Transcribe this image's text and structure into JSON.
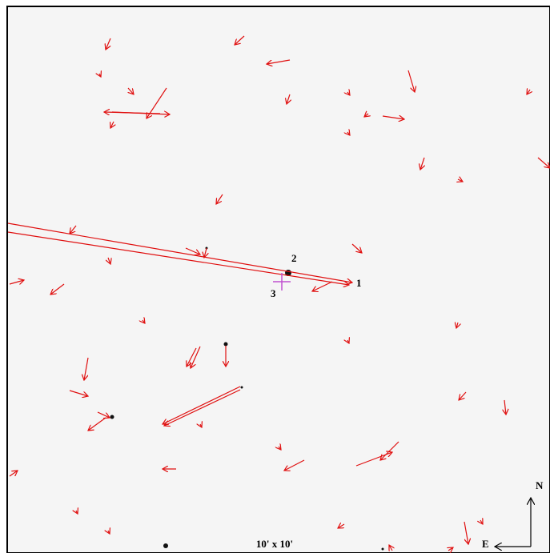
{
  "labels": {
    "star_1": "1",
    "star_2": "2",
    "star_3": "3"
  },
  "compass": {
    "north": "N",
    "east": "E"
  },
  "scale": "10' x 10'"
}
